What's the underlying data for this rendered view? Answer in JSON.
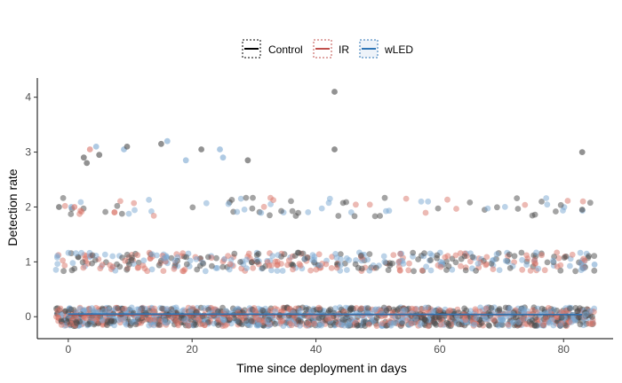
{
  "chart_data": {
    "type": "scatter",
    "title": "",
    "xlabel": "Time since deployment in days",
    "ylabel": "Detection rate",
    "xlim": [
      -5,
      88
    ],
    "ylim": [
      -0.4,
      4.35
    ],
    "x_ticks": [
      0,
      20,
      40,
      60,
      80
    ],
    "y_ticks": [
      0,
      1,
      2,
      3,
      4
    ],
    "grid": false,
    "legend_position": "top",
    "series": [
      {
        "name": "Control",
        "color": "#000000",
        "point_color": "#4a4a4a",
        "trend": [
          0.04,
          0.04
        ]
      },
      {
        "name": "IR",
        "color": "#c0504d",
        "point_color": "#d9756a",
        "trend": [
          0.04,
          0.04
        ]
      },
      {
        "name": "wLED",
        "color": "#2e75b6",
        "point_color": "#7aa7d1",
        "trend": [
          0.05,
          0.04
        ]
      }
    ],
    "x_range": [
      -2,
      85
    ],
    "jitter": 0.17,
    "observations": [
      {
        "x": -1.5,
        "y": 2,
        "series": "Control"
      },
      {
        "x": 0.5,
        "y": 2,
        "series": "wLED"
      },
      {
        "x": 1,
        "y": 2,
        "series": "IR"
      },
      {
        "x": 2.5,
        "y": 2.9,
        "series": "Control"
      },
      {
        "x": 3,
        "y": 2.8,
        "series": "Control"
      },
      {
        "x": 3.5,
        "y": 3.05,
        "series": "IR"
      },
      {
        "x": 4.5,
        "y": 3.1,
        "series": "wLED"
      },
      {
        "x": 5,
        "y": 2.95,
        "series": "Control"
      },
      {
        "x": 9,
        "y": 3.05,
        "series": "wLED"
      },
      {
        "x": 9.5,
        "y": 3.1,
        "series": "Control"
      },
      {
        "x": 15,
        "y": 3.15,
        "series": "Control"
      },
      {
        "x": 16,
        "y": 3.2,
        "series": "wLED"
      },
      {
        "x": 19,
        "y": 2.85,
        "series": "wLED"
      },
      {
        "x": 21.5,
        "y": 3.05,
        "series": "Control"
      },
      {
        "x": 24.5,
        "y": 3.05,
        "series": "wLED"
      },
      {
        "x": 25,
        "y": 2.9,
        "series": "wLED"
      },
      {
        "x": 29,
        "y": 2.85,
        "series": "Control"
      },
      {
        "x": 43,
        "y": 4.1,
        "series": "Control"
      },
      {
        "x": 43,
        "y": 3.05,
        "series": "Control"
      },
      {
        "x": 83,
        "y": 3,
        "series": "Control"
      },
      {
        "x": 83,
        "y": 1.95,
        "series": "Control"
      },
      {
        "x": 85,
        "y": 0.95,
        "series": "wLED"
      }
    ]
  }
}
